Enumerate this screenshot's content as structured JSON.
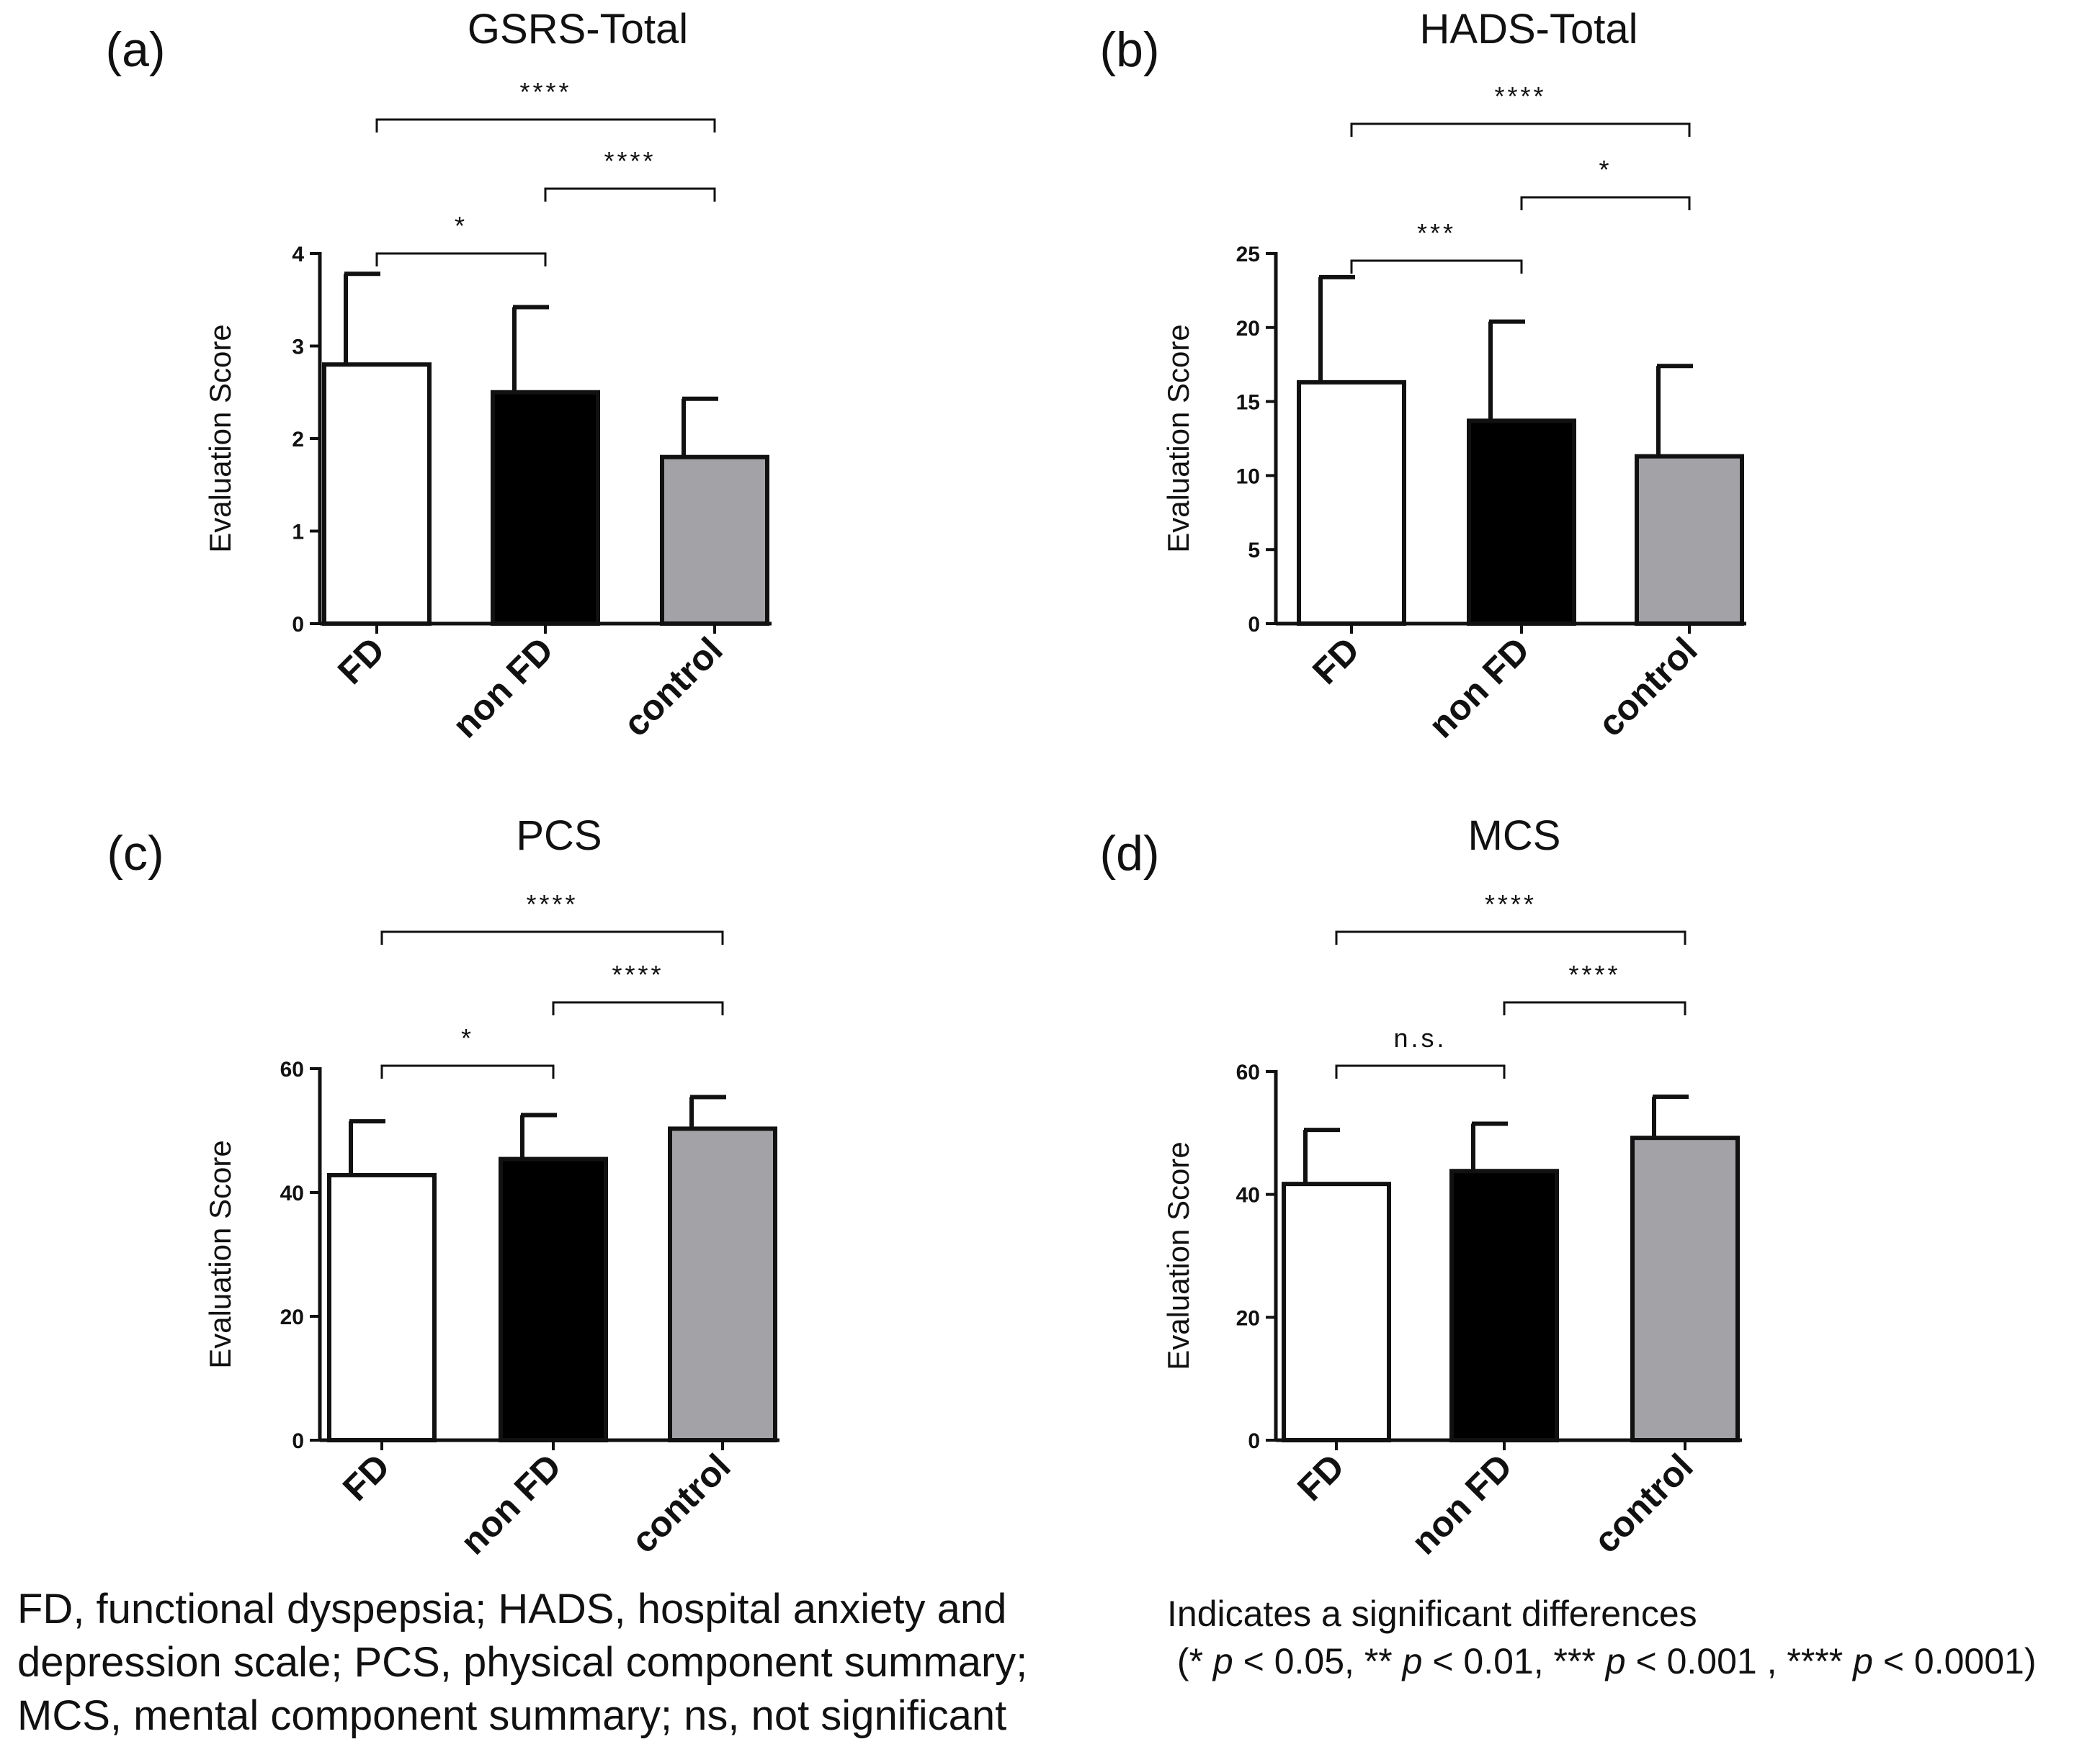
{
  "chart_data": [
    {
      "panel": "(a)",
      "type": "bar",
      "title": "GSRS-Total",
      "ylabel": "Evaluation Score",
      "xlabel": "",
      "categories": [
        "FD",
        "non FD",
        "control"
      ],
      "values": [
        2.8,
        2.5,
        1.8
      ],
      "errors": [
        0.98,
        0.92,
        0.63
      ],
      "ylim": [
        0,
        4
      ],
      "yticks": [
        0,
        1,
        2,
        3,
        4
      ],
      "ytick_labels": [
        "0",
        "1",
        "2",
        "3",
        "4"
      ],
      "bar_colors": [
        "#ffffff",
        "#000000",
        "#a3a3a7"
      ],
      "significance": [
        {
          "from": 0,
          "to": 1,
          "label": "*",
          "level": 0
        },
        {
          "from": 1,
          "to": 2,
          "label": "****",
          "level": 1
        },
        {
          "from": 0,
          "to": 2,
          "label": "****",
          "level": 2
        }
      ]
    },
    {
      "panel": "(b)",
      "type": "bar",
      "title": "HADS-Total",
      "ylabel": "Evaluation Score",
      "xlabel": "",
      "categories": [
        "FD",
        "non FD",
        "control"
      ],
      "values": [
        16.3,
        13.7,
        11.3
      ],
      "errors": [
        7.1,
        6.7,
        6.1
      ],
      "ylim": [
        0,
        25
      ],
      "yticks": [
        0,
        5,
        10,
        15,
        20,
        25
      ],
      "ytick_labels": [
        "0",
        "5",
        "10",
        "15",
        "20",
        "25"
      ],
      "bar_colors": [
        "#ffffff",
        "#000000",
        "#a3a3a7"
      ],
      "significance": [
        {
          "from": 0,
          "to": 1,
          "label": "***",
          "level": 0
        },
        {
          "from": 1,
          "to": 2,
          "label": "*",
          "level": 1
        },
        {
          "from": 0,
          "to": 2,
          "label": "****",
          "level": 2
        }
      ]
    },
    {
      "panel": "(c)",
      "type": "bar",
      "title": "PCS",
      "ylabel": "Evaluation Score",
      "xlabel": "",
      "categories": [
        "FD",
        "non FD",
        "control"
      ],
      "values": [
        42.8,
        45.4,
        50.3
      ],
      "errors": [
        8.7,
        7.1,
        5.1
      ],
      "ylim": [
        0,
        60
      ],
      "yticks": [
        0,
        20,
        40,
        60
      ],
      "ytick_labels": [
        "0",
        "20",
        "40",
        "60"
      ],
      "bar_colors": [
        "#ffffff",
        "#000000",
        "#a3a3a7"
      ],
      "significance": [
        {
          "from": 0,
          "to": 1,
          "label": "*",
          "level": 0
        },
        {
          "from": 1,
          "to": 2,
          "label": "****",
          "level": 1
        },
        {
          "from": 0,
          "to": 2,
          "label": "****",
          "level": 2
        }
      ]
    },
    {
      "panel": "(d)",
      "type": "bar",
      "title": "MCS",
      "ylabel": "Evaluation Score",
      "xlabel": "",
      "categories": [
        "FD",
        "non FD",
        "control"
      ],
      "values": [
        41.7,
        43.8,
        49.2
      ],
      "errors": [
        8.8,
        7.7,
        6.7
      ],
      "ylim": [
        0,
        60
      ],
      "yticks": [
        0,
        20,
        40,
        60
      ],
      "ytick_labels": [
        "0",
        "20",
        "40",
        "60"
      ],
      "bar_colors": [
        "#ffffff",
        "#000000",
        "#a3a3a7"
      ],
      "significance": [
        {
          "from": 0,
          "to": 1,
          "label": "n.s.",
          "level": 0
        },
        {
          "from": 1,
          "to": 2,
          "label": "****",
          "level": 1
        },
        {
          "from": 0,
          "to": 2,
          "label": "****",
          "level": 2
        }
      ]
    }
  ],
  "footnotes": {
    "abbreviations": [
      "FD, functional dyspepsia; HADS, hospital anxiety and",
      "depression scale; PCS, physical component summary;",
      "MCS, mental component summary;  ns, not significant"
    ],
    "significance_title": "Indicates a significant differences",
    "significance_legend": {
      "open": "(",
      "s1": "* ",
      "p1": "p",
      "t1": " < 0.05, ** ",
      "p2": "p",
      "t2": " < 0.01, *** ",
      "p3": "p",
      "t3": " < 0.001 , **** ",
      "p4": "p",
      "t4": " < 0.0001)"
    }
  }
}
